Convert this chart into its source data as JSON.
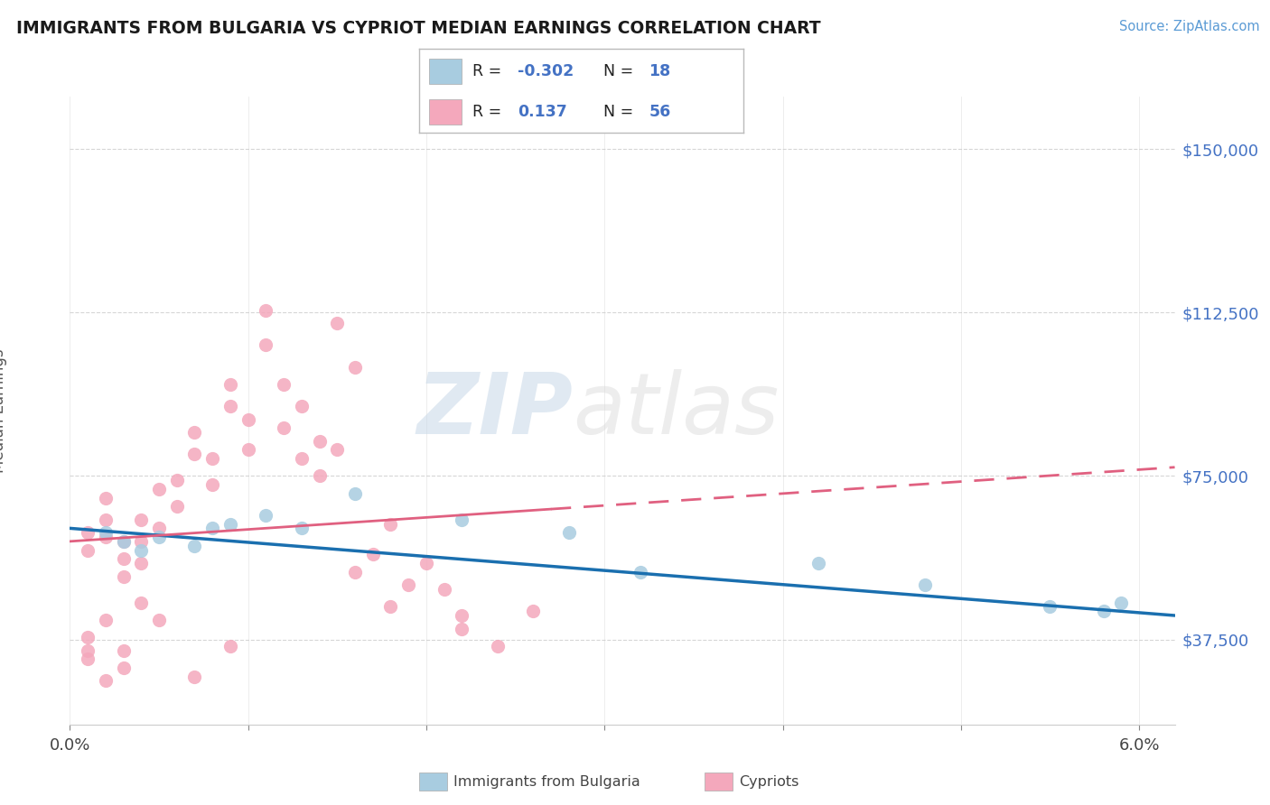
{
  "title": "IMMIGRANTS FROM BULGARIA VS CYPRIOT MEDIAN EARNINGS CORRELATION CHART",
  "source_text": "Source: ZipAtlas.com",
  "ylabel": "Median Earnings",
  "xlim": [
    0.0,
    0.062
  ],
  "ylim": [
    18000,
    162000
  ],
  "yticks": [
    37500,
    75000,
    112500,
    150000
  ],
  "ytick_labels": [
    "$37,500",
    "$75,000",
    "$112,500",
    "$150,000"
  ],
  "xticks": [
    0.0,
    0.01,
    0.02,
    0.03,
    0.04,
    0.05,
    0.06
  ],
  "xtick_labels": [
    "0.0%",
    "",
    "",
    "",
    "",
    "",
    "6.0%"
  ],
  "color_blue": "#a8cce0",
  "color_pink": "#f4a8bc",
  "color_blue_line": "#1a6faf",
  "color_pink_line": "#e06080",
  "r_blue": -0.302,
  "n_blue": 18,
  "r_pink": 0.137,
  "n_pink": 56,
  "blue_x": [
    0.002,
    0.003,
    0.004,
    0.005,
    0.007,
    0.008,
    0.009,
    0.011,
    0.013,
    0.016,
    0.022,
    0.028,
    0.032,
    0.042,
    0.048,
    0.055,
    0.059,
    0.058
  ],
  "blue_y": [
    62000,
    60000,
    58000,
    61000,
    59000,
    63000,
    64000,
    66000,
    63000,
    71000,
    65000,
    62000,
    53000,
    55000,
    50000,
    45000,
    46000,
    44000
  ],
  "pink_x": [
    0.001,
    0.001,
    0.002,
    0.002,
    0.003,
    0.003,
    0.004,
    0.004,
    0.005,
    0.005,
    0.006,
    0.006,
    0.007,
    0.007,
    0.008,
    0.008,
    0.009,
    0.009,
    0.01,
    0.01,
    0.011,
    0.011,
    0.012,
    0.012,
    0.013,
    0.013,
    0.014,
    0.014,
    0.015,
    0.015,
    0.016,
    0.017,
    0.018,
    0.018,
    0.019,
    0.02,
    0.021,
    0.022,
    0.022,
    0.024,
    0.026,
    0.016,
    0.003,
    0.005,
    0.007,
    0.009,
    0.002,
    0.001,
    0.001,
    0.001,
    0.002,
    0.003,
    0.004,
    0.002,
    0.003,
    0.004
  ],
  "pink_y": [
    62000,
    58000,
    70000,
    65000,
    60000,
    56000,
    65000,
    60000,
    63000,
    72000,
    68000,
    74000,
    80000,
    85000,
    79000,
    73000,
    91000,
    96000,
    88000,
    81000,
    105000,
    113000,
    86000,
    96000,
    79000,
    91000,
    83000,
    75000,
    110000,
    81000,
    53000,
    57000,
    64000,
    45000,
    50000,
    55000,
    49000,
    43000,
    40000,
    36000,
    44000,
    100000,
    35000,
    42000,
    29000,
    36000,
    61000,
    38000,
    35000,
    33000,
    28000,
    31000,
    46000,
    42000,
    52000,
    55000
  ],
  "watermark_zip": "ZIP",
  "watermark_atlas": "atlas",
  "background_color": "#ffffff"
}
